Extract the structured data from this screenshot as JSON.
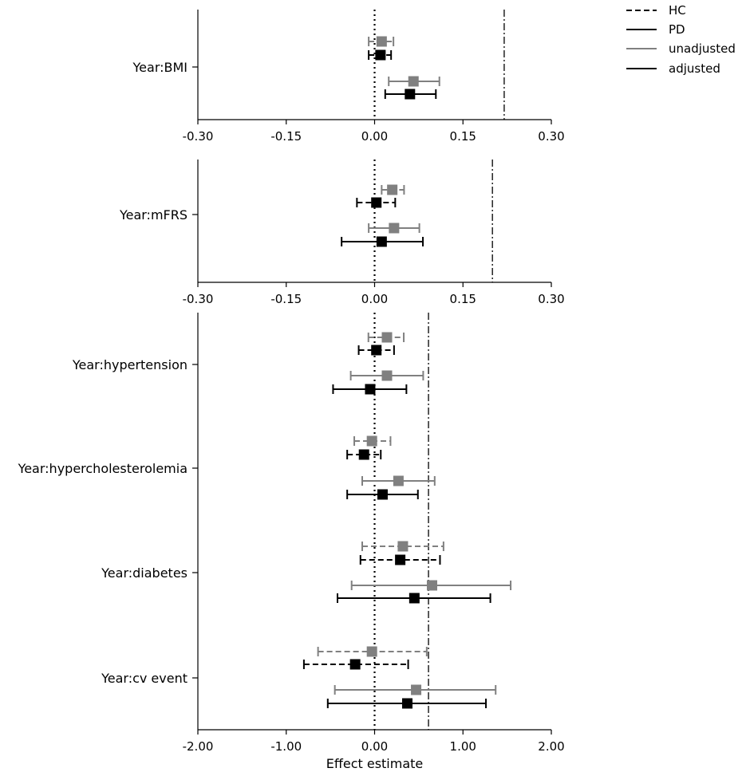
{
  "colors": {
    "unadjusted": "#808080",
    "adjusted": "#000000",
    "axis": "#000000",
    "background": "#ffffff"
  },
  "legend": {
    "position": "top-right",
    "entries": [
      {
        "label": "HC",
        "style": "dashed",
        "color": "#000000"
      },
      {
        "label": "PD",
        "style": "solid",
        "color": "#000000"
      },
      {
        "label": "unadjusted",
        "style": "solid",
        "color": "#808080"
      },
      {
        "label": "adjusted",
        "style": "solid",
        "color": "#000000"
      }
    ]
  },
  "chart_data": [
    {
      "type": "forest",
      "panel": "top",
      "xlim": [
        -0.3,
        0.3
      ],
      "xticks": [
        -0.3,
        -0.15,
        0.0,
        0.15,
        0.3
      ],
      "xtick_labels": [
        "-0.30",
        "-0.15",
        "0.00",
        "0.15",
        "0.30"
      ],
      "reference_lines": [
        {
          "x": 0.0,
          "style": "dotted"
        },
        {
          "x": 0.22,
          "style": "dashdot"
        }
      ],
      "rows": [
        {
          "label": "Year:BMI",
          "series": [
            {
              "group": "HC",
              "adjustment": "unadjusted",
              "estimate": 0.012,
              "lower": -0.01,
              "upper": 0.032
            },
            {
              "group": "HC",
              "adjustment": "adjusted",
              "estimate": 0.01,
              "lower": -0.01,
              "upper": 0.028
            },
            {
              "group": "PD",
              "adjustment": "unadjusted",
              "estimate": 0.066,
              "lower": 0.024,
              "upper": 0.11
            },
            {
              "group": "PD",
              "adjustment": "adjusted",
              "estimate": 0.06,
              "lower": 0.018,
              "upper": 0.104
            }
          ]
        }
      ]
    },
    {
      "type": "forest",
      "panel": "middle",
      "xlim": [
        -0.3,
        0.3
      ],
      "xticks": [
        -0.3,
        -0.15,
        0.0,
        0.15,
        0.3
      ],
      "xtick_labels": [
        "-0.30",
        "-0.15",
        "0.00",
        "0.15",
        "0.30"
      ],
      "reference_lines": [
        {
          "x": 0.0,
          "style": "dotted"
        },
        {
          "x": 0.2,
          "style": "dashdot"
        }
      ],
      "rows": [
        {
          "label": "Year:mFRS",
          "series": [
            {
              "group": "HC",
              "adjustment": "unadjusted",
              "estimate": 0.03,
              "lower": 0.012,
              "upper": 0.05
            },
            {
              "group": "HC",
              "adjustment": "adjusted",
              "estimate": 0.003,
              "lower": -0.03,
              "upper": 0.035
            },
            {
              "group": "PD",
              "adjustment": "unadjusted",
              "estimate": 0.033,
              "lower": -0.01,
              "upper": 0.076
            },
            {
              "group": "PD",
              "adjustment": "adjusted",
              "estimate": 0.012,
              "lower": -0.056,
              "upper": 0.082
            }
          ]
        }
      ]
    },
    {
      "type": "forest",
      "panel": "bottom",
      "xlim": [
        -2.0,
        2.0
      ],
      "xticks": [
        -2.0,
        -1.0,
        0.0,
        1.0,
        2.0
      ],
      "xtick_labels": [
        "-2.00",
        "-1.00",
        "0.00",
        "1.00",
        "2.00"
      ],
      "xlabel": "Effect estimate",
      "reference_lines": [
        {
          "x": 0.0,
          "style": "dotted"
        },
        {
          "x": 0.61,
          "style": "dashdot"
        }
      ],
      "rows": [
        {
          "label": "Year:hypertension",
          "series": [
            {
              "group": "HC",
              "adjustment": "unadjusted",
              "estimate": 0.14,
              "lower": -0.07,
              "upper": 0.33
            },
            {
              "group": "HC",
              "adjustment": "adjusted",
              "estimate": 0.02,
              "lower": -0.18,
              "upper": 0.22
            },
            {
              "group": "PD",
              "adjustment": "unadjusted",
              "estimate": 0.14,
              "lower": -0.27,
              "upper": 0.55
            },
            {
              "group": "PD",
              "adjustment": "adjusted",
              "estimate": -0.05,
              "lower": -0.47,
              "upper": 0.36
            }
          ]
        },
        {
          "label": "Year:hypercholesterolemia",
          "series": [
            {
              "group": "HC",
              "adjustment": "unadjusted",
              "estimate": -0.03,
              "lower": -0.23,
              "upper": 0.18
            },
            {
              "group": "HC",
              "adjustment": "adjusted",
              "estimate": -0.12,
              "lower": -0.31,
              "upper": 0.07
            },
            {
              "group": "PD",
              "adjustment": "unadjusted",
              "estimate": 0.27,
              "lower": -0.14,
              "upper": 0.68
            },
            {
              "group": "PD",
              "adjustment": "adjusted",
              "estimate": 0.09,
              "lower": -0.31,
              "upper": 0.49
            }
          ]
        },
        {
          "label": "Year:diabetes",
          "series": [
            {
              "group": "HC",
              "adjustment": "unadjusted",
              "estimate": 0.32,
              "lower": -0.14,
              "upper": 0.78
            },
            {
              "group": "HC",
              "adjustment": "adjusted",
              "estimate": 0.29,
              "lower": -0.16,
              "upper": 0.74
            },
            {
              "group": "PD",
              "adjustment": "unadjusted",
              "estimate": 0.65,
              "lower": -0.26,
              "upper": 1.54
            },
            {
              "group": "PD",
              "adjustment": "adjusted",
              "estimate": 0.45,
              "lower": -0.42,
              "upper": 1.31
            }
          ]
        },
        {
          "label": "Year:cv event",
          "series": [
            {
              "group": "HC",
              "adjustment": "unadjusted",
              "estimate": -0.03,
              "lower": -0.64,
              "upper": 0.59
            },
            {
              "group": "HC",
              "adjustment": "adjusted",
              "estimate": -0.22,
              "lower": -0.8,
              "upper": 0.38
            },
            {
              "group": "PD",
              "adjustment": "unadjusted",
              "estimate": 0.47,
              "lower": -0.45,
              "upper": 1.37
            },
            {
              "group": "PD",
              "adjustment": "adjusted",
              "estimate": 0.37,
              "lower": -0.53,
              "upper": 1.26
            }
          ]
        }
      ]
    }
  ]
}
